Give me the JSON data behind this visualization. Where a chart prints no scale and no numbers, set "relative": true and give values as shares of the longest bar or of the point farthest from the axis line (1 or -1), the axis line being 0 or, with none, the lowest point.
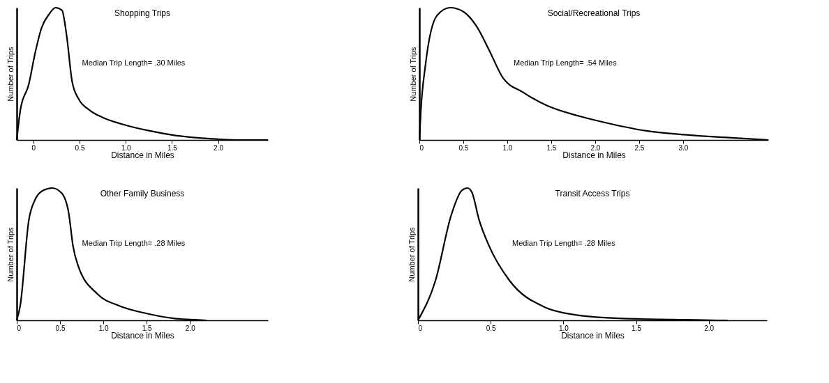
{
  "chart_data": [
    {
      "type": "line",
      "title": "Shopping Trips",
      "xlabel": "Distance in Miles",
      "ylabel": "Number of Trips",
      "annotations": [
        "Median Trip Length= .30 Miles"
      ],
      "relative": true,
      "color": "#000000",
      "xlim": [
        -0.18,
        2.54
      ],
      "xticks": [
        0,
        0.5,
        {
          "value": 1,
          "label": "1.0"
        },
        1.5,
        {
          "value": 2,
          "label": "2.0"
        }
      ],
      "x": [
        -0.18,
        -0.14,
        -0.05,
        0.02,
        0.09,
        0.17,
        0.24,
        0.31,
        0.36,
        0.42,
        0.49,
        0.6,
        0.75,
        0.96,
        1.25,
        1.54,
        1.91,
        2.2,
        2.54
      ],
      "values": [
        0,
        0.23,
        0.42,
        0.66,
        0.85,
        0.95,
        1,
        0.98,
        0.79,
        0.44,
        0.31,
        0.23,
        0.17,
        0.12,
        0.07,
        0.034,
        0.01,
        0,
        0
      ]
    },
    {
      "type": "line",
      "title": "Social/Recreational Trips",
      "xlabel": "Distance in Miles",
      "ylabel": "Number of Trips",
      "annotations": [
        "Median Trip Length= .54 Miles"
      ],
      "relative": true,
      "color": "#000000",
      "xlim": [
        0,
        3.97
      ],
      "xticks": [
        0,
        0.5,
        {
          "value": 1,
          "label": "1.0"
        },
        1.5,
        {
          "value": 2,
          "label": "2.0"
        },
        2.5,
        {
          "value": 3,
          "label": "3.0"
        }
      ],
      "x": [
        0,
        0.015,
        0.07,
        0.2,
        0.35,
        0.5,
        0.65,
        0.8,
        0.95,
        1.18,
        1.45,
        1.82,
        2.19,
        2.57,
        3.01,
        3.46,
        3.97
      ],
      "values": [
        0,
        0.2,
        0.57,
        0.94,
        1,
        0.97,
        0.86,
        0.67,
        0.47,
        0.36,
        0.26,
        0.18,
        0.12,
        0.07,
        0.04,
        0.02,
        0
      ]
    },
    {
      "type": "line",
      "title": "Other Family Business",
      "xlabel": "Distance in Miles",
      "ylabel": "Number of Trips",
      "annotations": [
        "Median Trip Length= .28 Miles"
      ],
      "relative": true,
      "color": "#000000",
      "xlim": [
        0,
        2.9
      ],
      "xticks": [
        0,
        0.5,
        {
          "value": 1,
          "label": "1.0"
        },
        1.5,
        {
          "value": 2,
          "label": "2.0"
        }
      ],
      "x": [
        0,
        0.04,
        0.14,
        0.21,
        0.3,
        0.41,
        0.52,
        0.6,
        0.65,
        0.71,
        0.93,
        1.18,
        1.51,
        1.81,
        2.19
      ],
      "values": [
        0,
        0.11,
        0.76,
        0.91,
        0.98,
        1,
        0.96,
        0.81,
        0.56,
        0.41,
        0.2,
        0.11,
        0.05,
        0.015,
        0
      ]
    },
    {
      "type": "line",
      "title": "Transit Access Trips",
      "xlabel": "Distance in Miles",
      "ylabel": "Number of Trips",
      "annotations": [
        "Median Trip Length= .28 Miles"
      ],
      "relative": true,
      "color": "#000000",
      "xlim": [
        0,
        2.4
      ],
      "xticks": [
        0,
        0.5,
        {
          "value": 1,
          "label": "1.0"
        },
        1.5,
        {
          "value": 2,
          "label": "2.0"
        }
      ],
      "x": [
        0,
        0.12,
        0.23,
        0.3,
        0.34,
        0.37,
        0.42,
        0.49,
        0.63,
        0.87,
        1.06,
        1.38,
        2.13
      ],
      "values": [
        0,
        0.3,
        0.8,
        0.98,
        1,
        0.97,
        0.76,
        0.56,
        0.3,
        0.1,
        0.045,
        0.015,
        0
      ]
    }
  ]
}
